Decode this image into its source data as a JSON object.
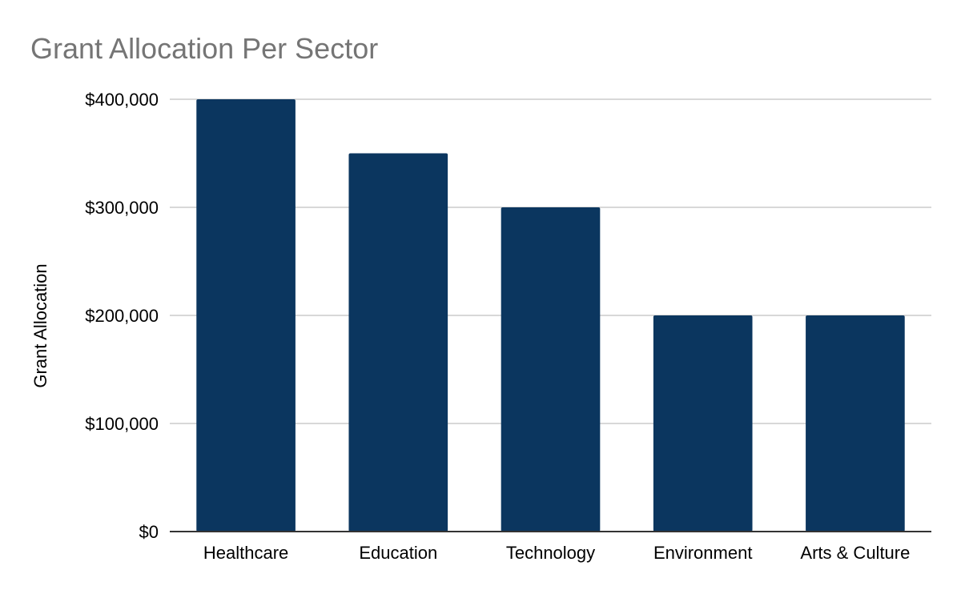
{
  "chart_data": {
    "type": "bar",
    "title": "Grant Allocation Per Sector",
    "xlabel": "",
    "ylabel": "Grant Allocation",
    "categories": [
      "Healthcare",
      "Education",
      "Technology",
      "Environment",
      "Arts & Culture"
    ],
    "values": [
      400000,
      350000,
      300000,
      200000,
      200000
    ],
    "ylim": [
      0,
      400000
    ],
    "yticks": [
      0,
      100000,
      200000,
      300000,
      400000
    ],
    "ytick_labels": [
      "$0",
      "$100,000",
      "$200,000",
      "$300,000",
      "$400,000"
    ],
    "grid": true,
    "legend": "none",
    "colors": {
      "bar": "#0b365f",
      "grid": "#cccccc",
      "axis": "#333333",
      "title": "#757575",
      "text": "#000000"
    }
  }
}
